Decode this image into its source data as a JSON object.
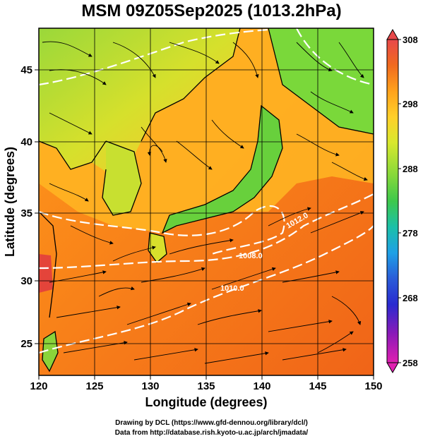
{
  "title": "MSM 09Z05Sep2025 (1013.2hPa)",
  "map": {
    "lon_range": [
      120,
      150
    ],
    "lat_range": [
      22.4,
      47.6
    ],
    "x_label": "Longitude (degrees)",
    "y_label": "Latitude  (degrees)",
    "x_ticks": [
      "120",
      "125",
      "130",
      "135",
      "140",
      "145",
      "150"
    ],
    "y_ticks": [
      "25",
      "30",
      "35",
      "40",
      "45"
    ],
    "isobar_labels": [
      "1008.0",
      "1010.0",
      "1012.0"
    ]
  },
  "colorbar": {
    "ticks": [
      "308",
      "298",
      "288",
      "278",
      "268",
      "258"
    ],
    "colors": [
      "#e8484a",
      "#f06a1e",
      "#ffa21c",
      "#ffd02a",
      "#d8e82e",
      "#86d83a",
      "#3ec84c",
      "#1cc0a8",
      "#1ea0e6",
      "#2a5cd8",
      "#2a2ad0",
      "#8a1ab8",
      "#e020b0"
    ]
  },
  "credits": {
    "line1": "Drawing by DCL (https://www.gfd-dennou.org/library/dcl/)",
    "line2": "Data from http://database.rish.kyoto-u.ac.jp/arch/jmadata/"
  }
}
